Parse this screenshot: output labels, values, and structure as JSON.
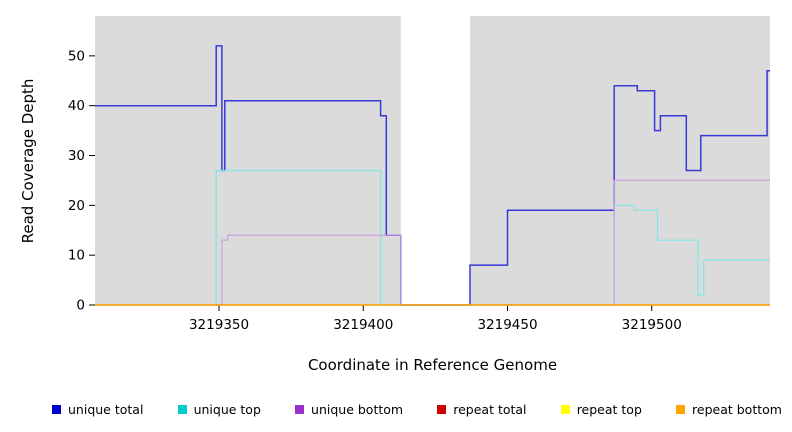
{
  "chart_data": {
    "type": "line",
    "step": true,
    "title": "",
    "xlabel": "Coordinate in Reference Genome",
    "ylabel": "Read Coverage Depth",
    "xlim": [
      3219307,
      3219541
    ],
    "ylim": [
      0,
      58
    ],
    "x_ticks": [
      3219350,
      3219400,
      3219450,
      3219500
    ],
    "y_ticks": [
      0,
      10,
      20,
      30,
      40,
      50
    ],
    "panel_bg": "#DBDBDB",
    "grid": false,
    "legend_position": "bottom",
    "masked_region": {
      "x0": 3219413,
      "x1": 3219437,
      "color": "#FFFFFF"
    },
    "series": [
      {
        "name": "unique total",
        "color": "#3939D8",
        "legend_color": "#0000CC",
        "width": 1.5,
        "points": [
          [
            3219307,
            40
          ],
          [
            3219349,
            40
          ],
          [
            3219349,
            52
          ],
          [
            3219351,
            52
          ],
          [
            3219351,
            27
          ],
          [
            3219352,
            27
          ],
          [
            3219352,
            41
          ],
          [
            3219406,
            41
          ],
          [
            3219406,
            38
          ],
          [
            3219408,
            38
          ],
          [
            3219408,
            14
          ],
          [
            3219413,
            14
          ],
          [
            3219413,
            0
          ],
          [
            3219437,
            0
          ],
          [
            3219437,
            8
          ],
          [
            3219450,
            8
          ],
          [
            3219450,
            19
          ],
          [
            3219487,
            19
          ],
          [
            3219487,
            44
          ],
          [
            3219495,
            44
          ],
          [
            3219495,
            43
          ],
          [
            3219501,
            43
          ],
          [
            3219501,
            35
          ],
          [
            3219503,
            35
          ],
          [
            3219503,
            38
          ],
          [
            3219512,
            38
          ],
          [
            3219512,
            27
          ],
          [
            3219517,
            27
          ],
          [
            3219517,
            34
          ],
          [
            3219540,
            34
          ],
          [
            3219540,
            47
          ],
          [
            3219541,
            47
          ]
        ]
      },
      {
        "name": "unique top",
        "color": "#7FE8E4",
        "legend_color": "#00CDCD",
        "width": 1.2,
        "points": [
          [
            3219307,
            0
          ],
          [
            3219349,
            0
          ],
          [
            3219349,
            27
          ],
          [
            3219406,
            27
          ],
          [
            3219406,
            0
          ],
          [
            3219487,
            0
          ],
          [
            3219487,
            20
          ],
          [
            3219494,
            20
          ],
          [
            3219494,
            19
          ],
          [
            3219502,
            19
          ],
          [
            3219502,
            13
          ],
          [
            3219516,
            13
          ],
          [
            3219516,
            2
          ],
          [
            3219518,
            2
          ],
          [
            3219518,
            9
          ],
          [
            3219541,
            9
          ]
        ]
      },
      {
        "name": "unique bottom",
        "color": "#C9A0DC",
        "legend_color": "#9932CC",
        "width": 1.2,
        "points": [
          [
            3219307,
            0
          ],
          [
            3219351,
            0
          ],
          [
            3219351,
            13
          ],
          [
            3219353,
            13
          ],
          [
            3219353,
            14
          ],
          [
            3219413,
            14
          ],
          [
            3219413,
            0
          ],
          [
            3219487,
            0
          ],
          [
            3219487,
            25
          ],
          [
            3219541,
            25
          ]
        ]
      },
      {
        "name": "repeat total",
        "color": "#CC0000",
        "legend_color": "#CC0000",
        "width": 1.2,
        "points": [
          [
            3219307,
            0
          ],
          [
            3219541,
            0
          ]
        ]
      },
      {
        "name": "repeat top",
        "color": "#FFFF00",
        "legend_color": "#FFFF00",
        "width": 1.2,
        "points": [
          [
            3219307,
            0
          ],
          [
            3219541,
            0
          ]
        ]
      },
      {
        "name": "repeat bottom",
        "color": "#FFA500",
        "legend_color": "#FFA500",
        "width": 1.2,
        "points": [
          [
            3219307,
            0
          ],
          [
            3219541,
            0
          ]
        ]
      }
    ]
  }
}
